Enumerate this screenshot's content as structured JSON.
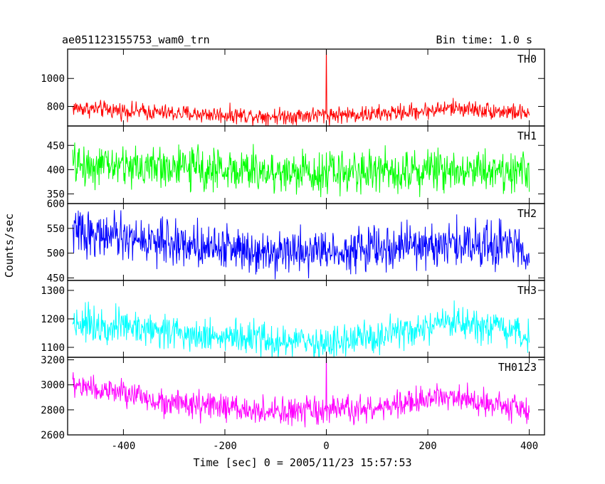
{
  "header": {
    "source": "ae051123155753_wam0_trn",
    "bin_time": "Bin time: 1.0 s"
  },
  "chart_data": {
    "type": "line",
    "xlabel": "Time [sec] 0 = 2005/11/23 15:57:53",
    "ylabel": "Counts/sec",
    "xlim": [
      -510,
      430
    ],
    "x_ticks": [
      -400,
      -200,
      0,
      200,
      400
    ],
    "x_step": 1.0,
    "x_range": [
      -500,
      400
    ],
    "panels": [
      {
        "name": "TH0",
        "color": "#ff0000",
        "ylim": [
          660,
          1210
        ],
        "y_ticks": [
          800,
          1000
        ],
        "trend": [
          [
            -500,
            790
          ],
          [
            -300,
            750
          ],
          [
            -100,
            730
          ],
          [
            0,
            740
          ],
          [
            100,
            745
          ],
          [
            200,
            770
          ],
          [
            250,
            790
          ],
          [
            400,
            750
          ]
        ],
        "noise_amplitude": 45,
        "spikes": [
          {
            "x": 0,
            "y": 1260
          }
        ]
      },
      {
        "name": "TH1",
        "color": "#00ff00",
        "ylim": [
          330,
          490
        ],
        "y_ticks": [
          350,
          400,
          450
        ],
        "trend": [
          [
            -500,
            410
          ],
          [
            -300,
            405
          ],
          [
            -100,
            395
          ],
          [
            0,
            395
          ],
          [
            200,
            400
          ],
          [
            300,
            402
          ],
          [
            400,
            395
          ]
        ],
        "noise_amplitude": 32,
        "spikes": []
      },
      {
        "name": "TH2",
        "color": "#0000ff",
        "ylim": [
          445,
          600
        ],
        "y_ticks": [
          450,
          500,
          550,
          600
        ],
        "trend": [
          [
            -500,
            545
          ],
          [
            -400,
            530
          ],
          [
            -300,
            520
          ],
          [
            -100,
            505
          ],
          [
            0,
            505
          ],
          [
            200,
            515
          ],
          [
            300,
            520
          ],
          [
            400,
            510
          ]
        ],
        "noise_amplitude": 33,
        "spikes": []
      },
      {
        "name": "TH3",
        "color": "#00ffff",
        "ylim": [
          1065,
          1335
        ],
        "y_ticks": [
          1100,
          1200,
          1300
        ],
        "trend": [
          [
            -500,
            1190
          ],
          [
            -400,
            1175
          ],
          [
            -300,
            1155
          ],
          [
            -100,
            1120
          ],
          [
            0,
            1115
          ],
          [
            100,
            1135
          ],
          [
            200,
            1165
          ],
          [
            250,
            1185
          ],
          [
            400,
            1140
          ]
        ],
        "noise_amplitude": 45,
        "spikes": []
      },
      {
        "name": "TH0123",
        "color": "#ff00ff",
        "ylim": [
          2600,
          3220
        ],
        "y_ticks": [
          2600,
          2800,
          3000,
          3200
        ],
        "trend": [
          [
            -500,
            3000
          ],
          [
            -400,
            2930
          ],
          [
            -300,
            2850
          ],
          [
            -100,
            2780
          ],
          [
            0,
            2790
          ],
          [
            100,
            2810
          ],
          [
            200,
            2880
          ],
          [
            250,
            2920
          ],
          [
            400,
            2790
          ]
        ],
        "noise_amplitude": 80,
        "spikes": [
          {
            "x": 0,
            "y": 3300
          }
        ]
      }
    ]
  }
}
